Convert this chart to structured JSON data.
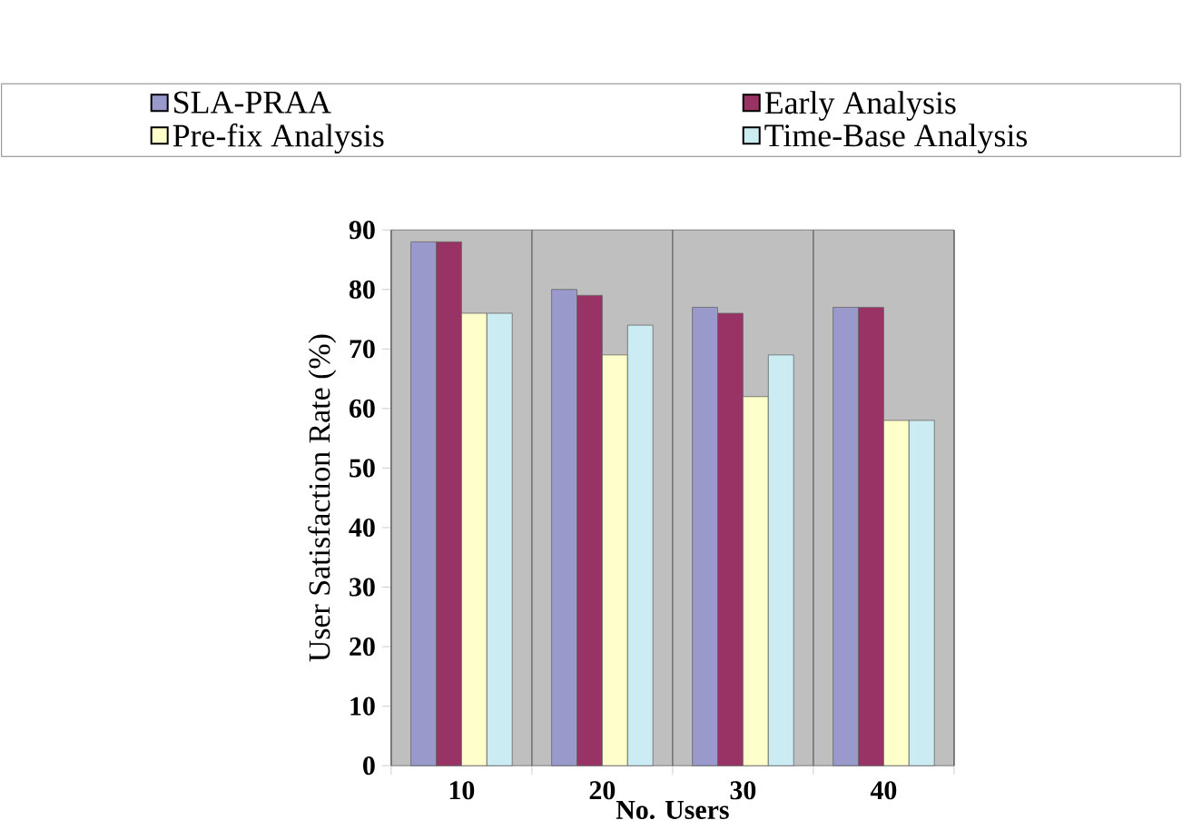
{
  "chart_data": {
    "type": "bar",
    "xlabel": "No. Users",
    "ylabel": "User Satisfaction Rate (%)",
    "categories": [
      "10",
      "20",
      "30",
      "40"
    ],
    "series": [
      {
        "name": "SLA-PRAA",
        "color": "#9999cc",
        "values": [
          88,
          80,
          77,
          77
        ]
      },
      {
        "name": "Early Analysis",
        "color": "#993366",
        "values": [
          88,
          79,
          76,
          77
        ]
      },
      {
        "name": "Pre-fix Analysis",
        "color": "#ffffcc",
        "values": [
          76,
          69,
          62,
          58
        ]
      },
      {
        "name": "Time-Base Analysis",
        "color": "#ccecf4",
        "values": [
          76,
          74,
          69,
          58
        ]
      }
    ],
    "ylim": [
      0,
      90
    ],
    "yticks": [
      0,
      10,
      20,
      30,
      40,
      50,
      60,
      70,
      80,
      90
    ],
    "grid": "x",
    "legend": "top"
  }
}
